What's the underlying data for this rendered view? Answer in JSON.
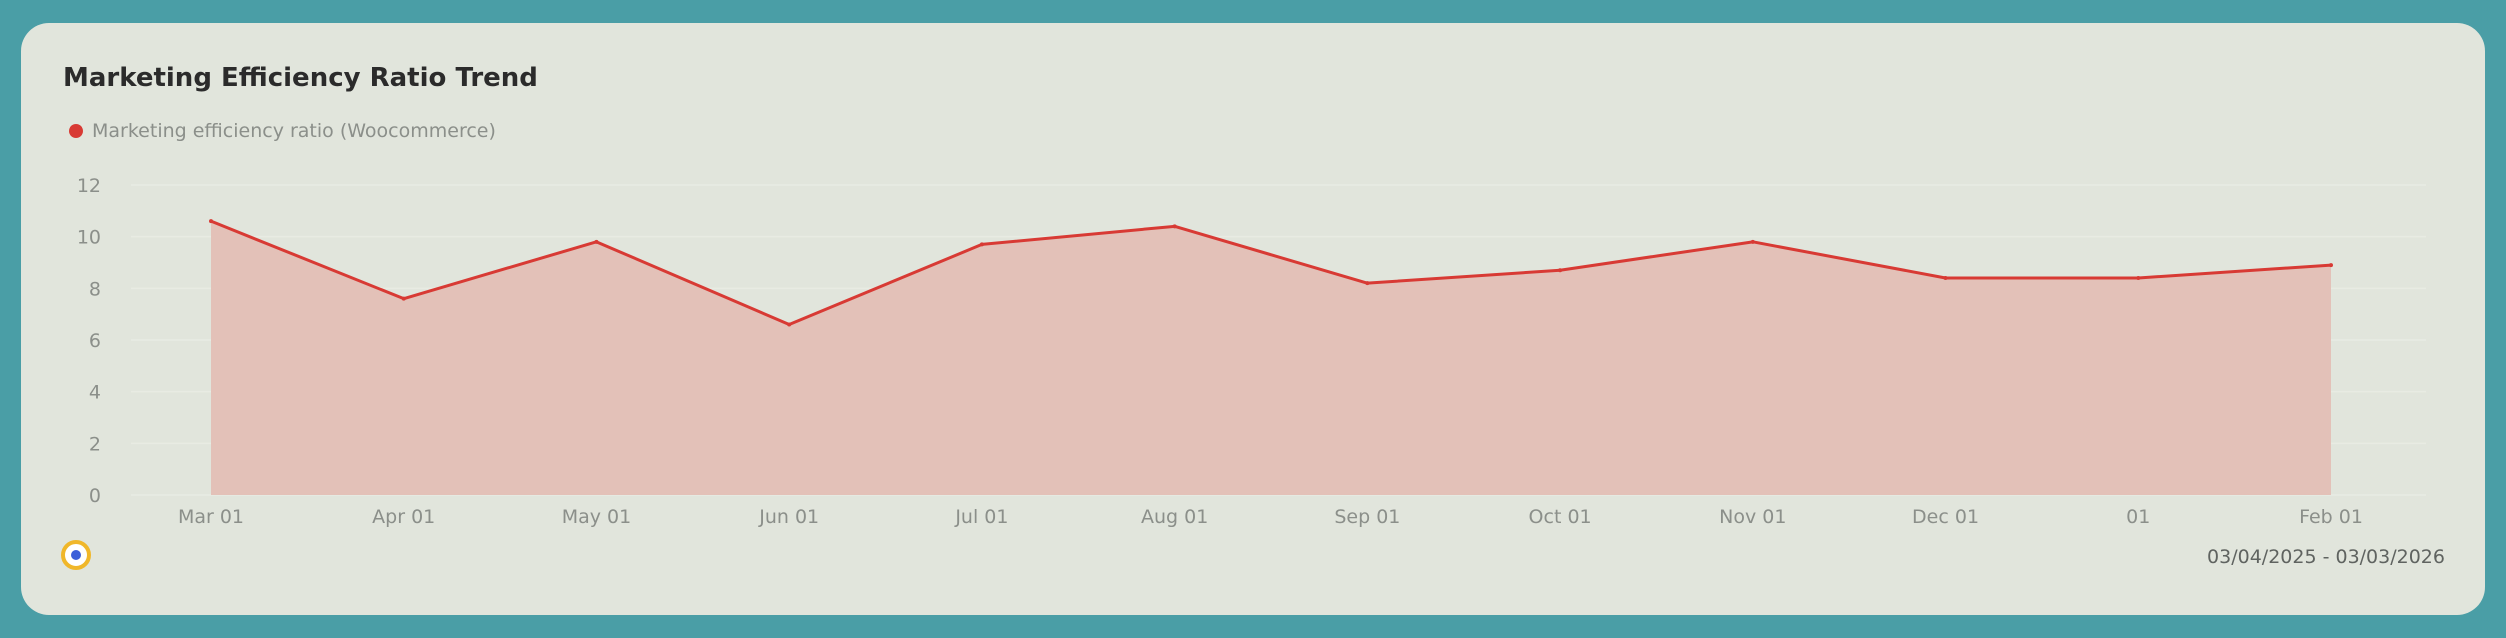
{
  "card": {
    "title": "Marketing Efficiency Ratio Trend",
    "date_range": "03/04/2025 - 03/03/2026"
  },
  "colors": {
    "line": "#d83a34",
    "area": "#e3c1b8",
    "grid": "#e8ebe3",
    "tick": "#8b8f8a",
    "page_bg": "#4a9ea6",
    "card_bg": "#e1e5dc"
  },
  "logo_icon": "circle-logo-icon",
  "chart_data": {
    "type": "area",
    "title": "Marketing Efficiency Ratio Trend",
    "categories": [
      "Mar 01",
      "Apr 01",
      "May 01",
      "Jun 01",
      "Jul 01",
      "Aug 01",
      "Sep 01",
      "Oct 01",
      "Nov 01",
      "Dec 01",
      "01",
      "Feb 01"
    ],
    "series": [
      {
        "name": "Marketing efficiency ratio (Woocommerce)",
        "values": [
          10.6,
          7.6,
          9.8,
          6.6,
          9.7,
          10.4,
          8.2,
          8.7,
          9.8,
          8.4,
          8.4,
          8.9
        ]
      }
    ],
    "yticks": [
      0,
      2,
      4,
      6,
      8,
      10,
      12
    ],
    "ylim": [
      0,
      12
    ],
    "grid": true,
    "legend_position": "top-left"
  }
}
